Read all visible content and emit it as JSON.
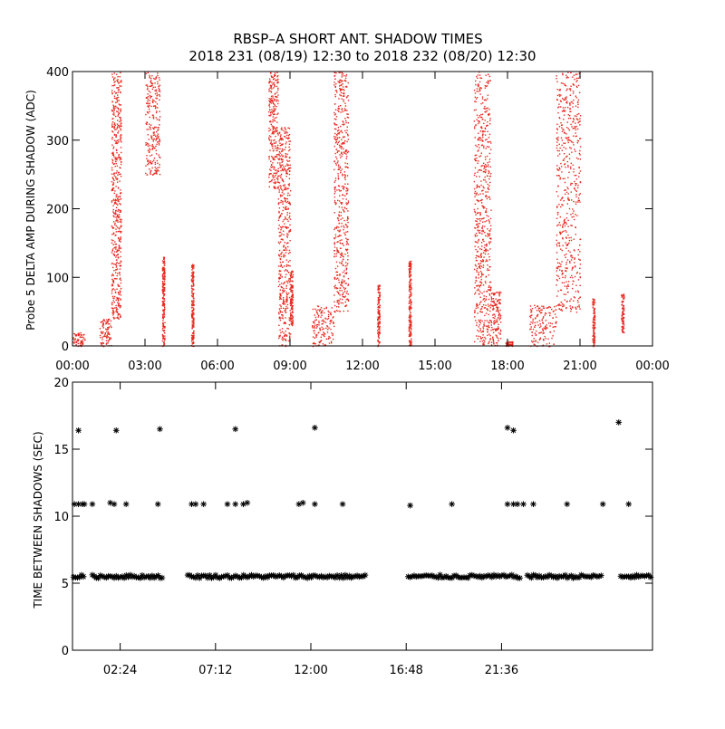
{
  "title_line1": "RBSP–A SHORT ANT. SHADOW TIMES",
  "title_line2": "2018 231 (08/19) 12:30 to 2018 232 (08/20) 12:30",
  "colors": {
    "points": "#e8281e",
    "markers": "#000000",
    "axes": "#000000"
  },
  "chart_data": [
    {
      "type": "scatter",
      "ylabel": "Probe 5 DELTA AMP DURING SHADOW (ADC)",
      "xlim": [
        0,
        24
      ],
      "ylim": [
        0,
        400
      ],
      "x_tick_values": [
        0,
        3,
        6,
        9,
        12,
        15,
        18,
        21,
        24
      ],
      "x_tick_labels": [
        "00:00",
        "03:00",
        "06:00",
        "09:00",
        "12:00",
        "15:00",
        "18:00",
        "21:00",
        "00:00"
      ],
      "y_tick_values": [
        0,
        100,
        200,
        300,
        400
      ],
      "y_tick_labels": [
        "0",
        "100",
        "200",
        "300",
        "400"
      ],
      "clusters": [
        {
          "x": [
            0.0,
            0.5
          ],
          "y": [
            0,
            20
          ]
        },
        {
          "x": [
            1.1,
            1.6
          ],
          "y": [
            0,
            40
          ]
        },
        {
          "x": [
            1.6,
            2.0
          ],
          "y": [
            40,
            400
          ]
        },
        {
          "x": [
            3.0,
            3.6
          ],
          "y": [
            250,
            400
          ]
        },
        {
          "x": [
            3.7,
            3.8
          ],
          "y": [
            0,
            130
          ]
        },
        {
          "x": [
            4.9,
            5.0
          ],
          "y": [
            0,
            120
          ]
        },
        {
          "x": [
            8.1,
            8.5
          ],
          "y": [
            230,
            400
          ]
        },
        {
          "x": [
            8.5,
            9.0
          ],
          "y": [
            0,
            320
          ]
        },
        {
          "x": [
            9.0,
            9.1
          ],
          "y": [
            30,
            110
          ]
        },
        {
          "x": [
            9.9,
            10.8
          ],
          "y": [
            0,
            60
          ]
        },
        {
          "x": [
            10.8,
            11.4
          ],
          "y": [
            50,
            400
          ]
        },
        {
          "x": [
            12.6,
            12.7
          ],
          "y": [
            0,
            90
          ]
        },
        {
          "x": [
            13.9,
            14.0
          ],
          "y": [
            0,
            125
          ]
        },
        {
          "x": [
            16.6,
            17.3
          ],
          "y": [
            0,
            400
          ]
        },
        {
          "x": [
            17.3,
            17.7
          ],
          "y": [
            0,
            80
          ]
        },
        {
          "x": [
            17.9,
            18.2
          ],
          "y": [
            0,
            8
          ]
        },
        {
          "x": [
            18.9,
            20.0
          ],
          "y": [
            0,
            60
          ]
        },
        {
          "x": [
            20.0,
            21.0
          ],
          "y": [
            50,
            400
          ]
        },
        {
          "x": [
            21.5,
            21.6
          ],
          "y": [
            0,
            70
          ]
        },
        {
          "x": [
            22.7,
            22.8
          ],
          "y": [
            20,
            80
          ]
        }
      ]
    },
    {
      "type": "scatter",
      "ylabel": "TIME BETWEEN SHADOWS (SEC)",
      "xlim": [
        0,
        29.2
      ],
      "ylim": [
        0,
        20
      ],
      "x_tick_values": [
        2.4,
        7.2,
        12.0,
        16.8,
        21.6
      ],
      "x_tick_labels": [
        "02:24",
        "07:12",
        "12:00",
        "16:48",
        "21:36"
      ],
      "y_tick_values": [
        0,
        5,
        10,
        15,
        20
      ],
      "y_tick_labels": [
        "0",
        "5",
        "10",
        "15",
        "20"
      ],
      "bands": [
        {
          "x_start": 0.05,
          "x_end": 0.65,
          "y": 5.5
        },
        {
          "x_start": 1.0,
          "x_end": 4.6,
          "y": 5.5
        },
        {
          "x_start": 5.8,
          "x_end": 14.8,
          "y": 5.5
        },
        {
          "x_start": 16.9,
          "x_end": 22.6,
          "y": 5.5
        },
        {
          "x_start": 22.9,
          "x_end": 26.7,
          "y": 5.5
        },
        {
          "x_start": 27.6,
          "x_end": 29.2,
          "y": 5.5
        }
      ],
      "x": [
        0.3,
        2.2,
        4.4,
        8.2,
        12.2,
        21.9,
        22.2,
        27.5,
        0.1,
        0.3,
        0.5,
        0.6,
        1.0,
        1.9,
        2.1,
        2.7,
        4.3,
        6.0,
        6.2,
        6.6,
        7.8,
        8.2,
        8.6,
        8.8,
        11.4,
        11.6,
        12.2,
        13.6,
        17.0,
        19.1,
        21.9,
        22.2,
        22.4,
        22.7,
        23.2,
        24.9,
        26.7,
        28.0
      ],
      "y": [
        16.4,
        16.4,
        16.5,
        16.5,
        16.6,
        16.6,
        16.4,
        17.0,
        10.9,
        10.9,
        10.9,
        10.9,
        10.9,
        11.0,
        10.9,
        10.9,
        10.9,
        10.9,
        10.9,
        10.9,
        10.9,
        10.9,
        10.9,
        11.0,
        10.9,
        11.0,
        10.9,
        10.9,
        10.8,
        10.9,
        10.9,
        10.9,
        10.9,
        10.9,
        10.9,
        10.9,
        10.9,
        10.9
      ]
    }
  ]
}
